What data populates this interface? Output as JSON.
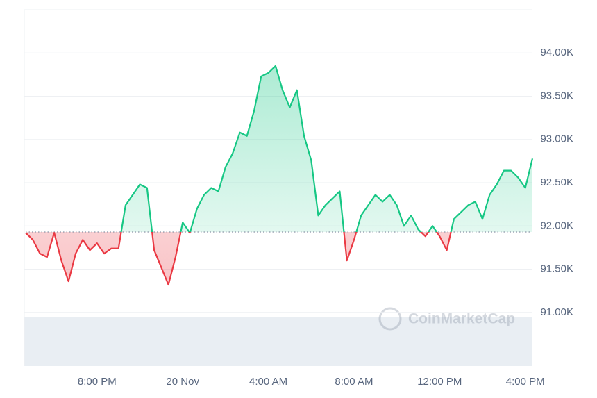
{
  "chart_data": {
    "type": "line",
    "watermark": "CoinMarketCap",
    "categories": [
      null,
      null,
      null,
      null,
      null,
      null,
      null,
      null,
      null,
      null,
      "8:00 PM",
      null,
      null,
      null,
      null,
      null,
      null,
      null,
      null,
      null,
      null,
      null,
      "20 Nov",
      null,
      null,
      null,
      null,
      null,
      null,
      null,
      null,
      null,
      null,
      null,
      "4:00 AM",
      null,
      null,
      null,
      null,
      null,
      null,
      null,
      null,
      null,
      null,
      null,
      "8:00 AM",
      null,
      null,
      null,
      null,
      null,
      null,
      null,
      null,
      null,
      null,
      null,
      "12:00 PM",
      null,
      null,
      null,
      null,
      null,
      null,
      null,
      null,
      null,
      null,
      null,
      "4:00 PM",
      null
    ],
    "values": [
      91920,
      91840,
      91680,
      91640,
      91920,
      91600,
      91360,
      91680,
      91840,
      91720,
      91800,
      91680,
      91740,
      91740,
      92240,
      92360,
      92480,
      92440,
      91720,
      91520,
      91320,
      91640,
      92040,
      91920,
      92200,
      92360,
      92440,
      92400,
      92680,
      92840,
      93080,
      93040,
      93330,
      93730,
      93770,
      93850,
      93570,
      93370,
      93570,
      93040,
      92760,
      92120,
      92240,
      92320,
      92400,
      91600,
      91840,
      92120,
      92240,
      92360,
      92280,
      92360,
      92240,
      92000,
      92120,
      91960,
      91880,
      92000,
      91880,
      91720,
      92080,
      92160,
      92240,
      92280,
      92080,
      92360,
      92480,
      92640,
      92640,
      92560,
      92440,
      92780
    ],
    "baseline": 91930,
    "up_color": "#16c784",
    "down_color": "#ea3943",
    "ylim": [
      90380,
      94500
    ],
    "yticks": [
      {
        "value": 91000,
        "label": "91.00K"
      },
      {
        "value": 91500,
        "label": "91.50K"
      },
      {
        "value": 92000,
        "label": "92.00K"
      },
      {
        "value": 92500,
        "label": "92.50K"
      },
      {
        "value": 93000,
        "label": "93.00K"
      },
      {
        "value": 93500,
        "label": "93.50K"
      },
      {
        "value": 94000,
        "label": "94.00K"
      }
    ],
    "grid": true
  }
}
